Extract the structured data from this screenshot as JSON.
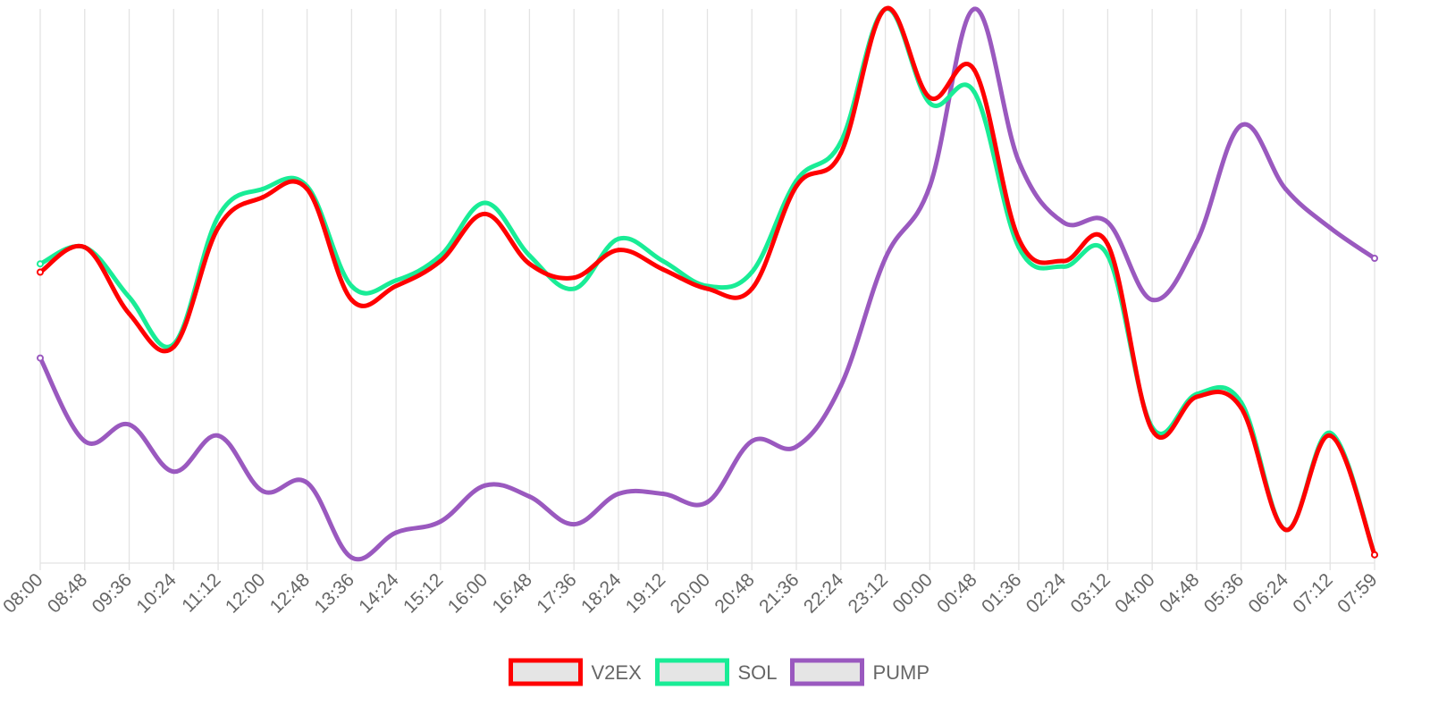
{
  "chart_data": {
    "type": "line",
    "title": "",
    "xlabel": "",
    "ylabel": "",
    "x": [
      "08:00",
      "08:48",
      "09:36",
      "10:24",
      "11:12",
      "12:00",
      "12:48",
      "13:36",
      "14:24",
      "15:12",
      "16:00",
      "16:48",
      "17:36",
      "18:24",
      "19:12",
      "20:00",
      "20:48",
      "21:36",
      "22:24",
      "23:12",
      "00:00",
      "00:48",
      "01:36",
      "02:24",
      "03:12",
      "04:00",
      "04:48",
      "05:36",
      "06:24",
      "07:12",
      "07:59"
    ],
    "ylim": [
      0,
      100
    ],
    "grid": "vertical",
    "legend_position": "bottom-center",
    "series": [
      {
        "name": "V2EX",
        "color": "#ff0000",
        "values": [
          52.5,
          57,
          45,
          39,
          60.5,
          66,
          67.5,
          47.5,
          50,
          54.5,
          63,
          54,
          51.5,
          56.5,
          53,
          49.5,
          49.5,
          68,
          74,
          100,
          84,
          89,
          58.5,
          54.5,
          57.5,
          24,
          30,
          28,
          6,
          23,
          1.5
        ],
        "values_source": "approximate, read at labeled x positions"
      },
      {
        "name": "SOL",
        "color": "#19ec96",
        "values": [
          54,
          57,
          48,
          39.5,
          62.5,
          67.5,
          68,
          50,
          51,
          55.5,
          65,
          55.5,
          49.5,
          58.5,
          54.5,
          50,
          52.5,
          69,
          76,
          100,
          83,
          85,
          57,
          53.5,
          55.5,
          24.5,
          30.5,
          29,
          6,
          23.5,
          1.5
        ]
      },
      {
        "name": "PUMP",
        "color": "#9a59bf",
        "values": [
          37,
          22,
          25,
          16.5,
          23,
          13,
          14.5,
          1,
          5.5,
          7.5,
          14,
          12,
          7,
          12.5,
          12.5,
          11,
          22,
          21,
          32,
          55,
          68,
          100,
          72.5,
          61.5,
          61.5,
          47.5,
          58,
          79,
          67.5,
          60.5,
          55
        ]
      }
    ]
  }
}
